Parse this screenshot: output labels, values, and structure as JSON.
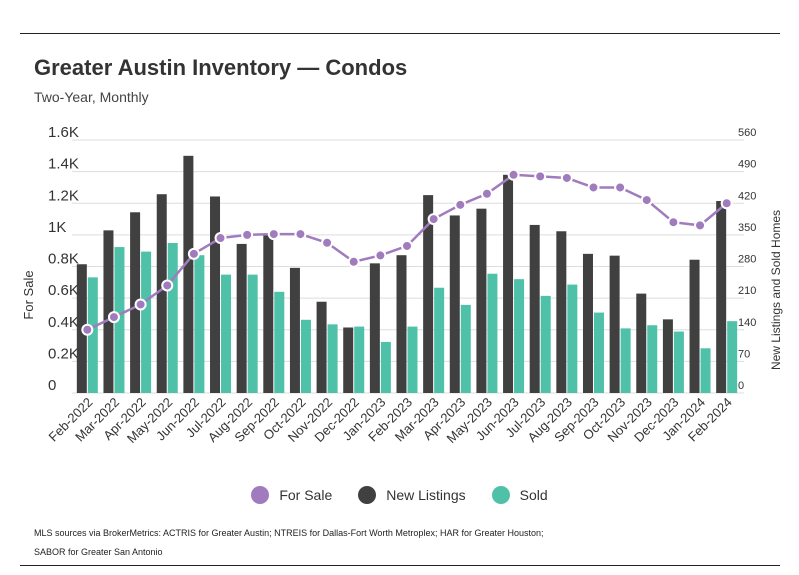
{
  "title": "Greater Austin Inventory — Condos",
  "subtitle": "Two-Year, Monthly",
  "source": "MLS sources via BrokerMetrics: ACTRIS for Greater Austin; NTREIS for Dallas-Fort Worth Metroplex; HAR for Greater Houston; SABOR for Greater San Antonio",
  "colors": {
    "for_sale": "#a07bbd",
    "new_listings": "#404040",
    "sold": "#4fc1a9",
    "grid": "#dddddd",
    "text": "#333333"
  },
  "chart_data": {
    "type": "bar",
    "title": "Greater Austin Inventory — Condos",
    "subtitle": "Two-Year, Monthly",
    "ylabel": "For Sale",
    "y2label": "New Listings and Sold Homes",
    "ylim": [
      0,
      1600
    ],
    "y2lim": [
      0,
      560
    ],
    "yticks": [
      "0",
      "0.2K",
      "0.4K",
      "0.6K",
      "0.8K",
      "1K",
      "1.2K",
      "1.4K",
      "1.6K"
    ],
    "y2ticks": [
      "0",
      "70",
      "140",
      "210",
      "280",
      "350",
      "420",
      "490",
      "560"
    ],
    "grid": true,
    "legend_position": "bottom",
    "categories": [
      "Feb-2022",
      "Mar-2022",
      "Apr-2022",
      "May-2022",
      "Jun-2022",
      "Jul-2022",
      "Aug-2022",
      "Sep-2022",
      "Oct-2022",
      "Nov-2022",
      "Dec-2022",
      "Jan-2023",
      "Feb-2023",
      "Mar-2023",
      "Apr-2023",
      "May-2023",
      "Jun-2023",
      "Jul-2023",
      "Aug-2023",
      "Sep-2023",
      "Oct-2023",
      "Nov-2023",
      "Dec-2023",
      "Jan-2024",
      "Feb-2024"
    ],
    "series": [
      {
        "name": "For Sale",
        "type": "line",
        "axis": "left",
        "values": [
          400,
          480,
          560,
          680,
          880,
          980,
          1000,
          1005,
          1005,
          950,
          830,
          870,
          930,
          1100,
          1190,
          1260,
          1380,
          1370,
          1360,
          1300,
          1300,
          1220,
          1080,
          1060,
          1200
        ]
      },
      {
        "name": "New Listings",
        "type": "bar",
        "axis": "right",
        "values": [
          285,
          360,
          400,
          440,
          525,
          435,
          330,
          350,
          277,
          202,
          145,
          287,
          305,
          438,
          393,
          408,
          483,
          372,
          358,
          308,
          304,
          220,
          163,
          295,
          425
        ]
      },
      {
        "name": "Sold",
        "type": "bar",
        "axis": "right",
        "values": [
          256,
          323,
          313,
          332,
          305,
          262,
          262,
          224,
          162,
          152,
          147,
          113,
          147,
          233,
          195,
          264,
          252,
          215,
          240,
          178,
          143,
          150,
          136,
          99,
          159
        ]
      }
    ]
  }
}
